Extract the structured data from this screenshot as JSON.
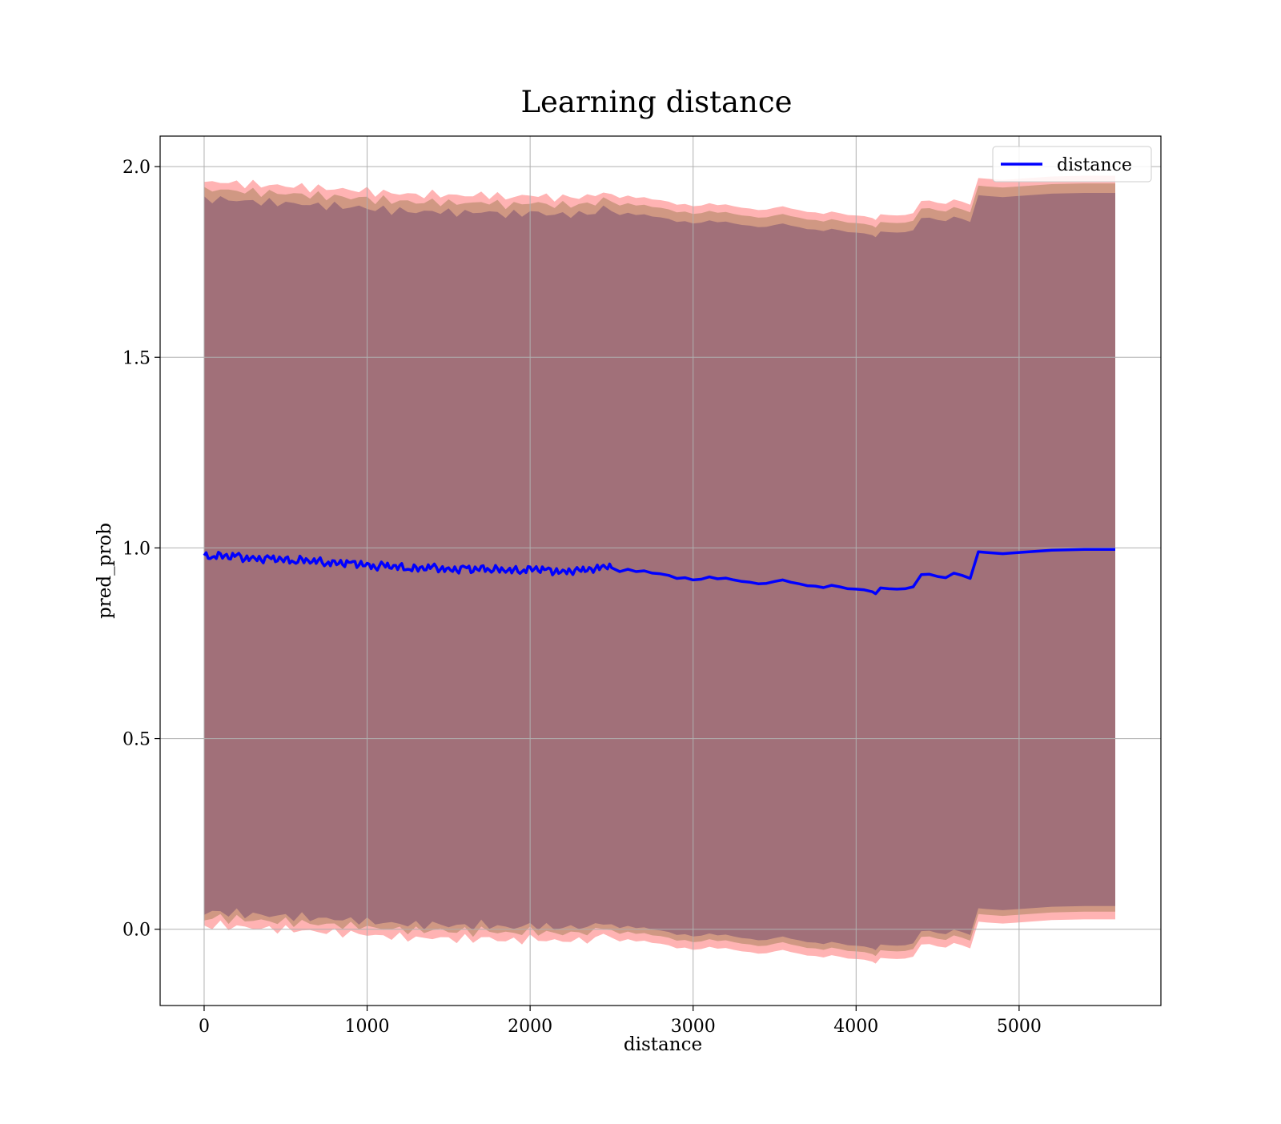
{
  "chart_data": {
    "type": "line",
    "title": "Learning distance",
    "xlabel": "distance",
    "ylabel": "pred_prob",
    "xlim": [
      -270,
      5870
    ],
    "ylim": [
      -0.2,
      2.08
    ],
    "xticks": [
      0,
      1000,
      2000,
      3000,
      4000,
      5000
    ],
    "xtick_labels": [
      "0",
      "1000",
      "2000",
      "3000",
      "4000",
      "5000"
    ],
    "yticks": [
      0.0,
      0.5,
      1.0,
      1.5,
      2.0
    ],
    "ytick_labels": [
      "0.0",
      "0.5",
      "1.0",
      "1.5",
      "2.0"
    ],
    "grid": true,
    "legend": {
      "placement": "top-right",
      "entries": [
        "distance"
      ]
    },
    "colors": {
      "line": "#0000ff",
      "band_outer": "#ff9a9a",
      "band_middle": "#c8937a",
      "band_inner": "#a17079",
      "grid": "#b0b0b0"
    },
    "series": [
      {
        "name": "distance",
        "x": [
          0,
          50,
          100,
          150,
          200,
          250,
          300,
          350,
          400,
          450,
          500,
          550,
          600,
          650,
          700,
          750,
          800,
          850,
          900,
          950,
          1000,
          1050,
          1100,
          1150,
          1200,
          1250,
          1300,
          1350,
          1400,
          1450,
          1500,
          1550,
          1600,
          1650,
          1700,
          1750,
          1800,
          1850,
          1900,
          1950,
          2000,
          2050,
          2100,
          2150,
          2200,
          2250,
          2300,
          2350,
          2400,
          2450,
          2500,
          2550,
          2600,
          2650,
          2700,
          2750,
          2800,
          2850,
          2900,
          2950,
          3000,
          3050,
          3100,
          3150,
          3200,
          3250,
          3300,
          3350,
          3400,
          3450,
          3500,
          3550,
          3600,
          3650,
          3700,
          3750,
          3800,
          3850,
          3900,
          3950,
          4000,
          4050,
          4100,
          4120,
          4150,
          4200,
          4250,
          4300,
          4350,
          4400,
          4450,
          4500,
          4550,
          4600,
          4650,
          4700,
          4750,
          4800,
          4900,
          5000,
          5200,
          5400,
          5590
        ],
        "y": [
          0.98,
          0.976,
          0.985,
          0.972,
          0.982,
          0.97,
          0.978,
          0.968,
          0.975,
          0.966,
          0.974,
          0.963,
          0.972,
          0.96,
          0.968,
          0.958,
          0.966,
          0.956,
          0.962,
          0.955,
          0.96,
          0.948,
          0.957,
          0.946,
          0.954,
          0.944,
          0.95,
          0.942,
          0.952,
          0.944,
          0.948,
          0.94,
          0.95,
          0.938,
          0.952,
          0.942,
          0.946,
          0.936,
          0.944,
          0.938,
          0.95,
          0.94,
          0.944,
          0.936,
          0.942,
          0.938,
          0.942,
          0.94,
          0.946,
          0.955,
          0.948,
          0.938,
          0.944,
          0.938,
          0.94,
          0.934,
          0.932,
          0.928,
          0.92,
          0.922,
          0.916,
          0.918,
          0.924,
          0.919,
          0.921,
          0.916,
          0.912,
          0.91,
          0.906,
          0.907,
          0.912,
          0.916,
          0.91,
          0.906,
          0.901,
          0.9,
          0.896,
          0.902,
          0.898,
          0.893,
          0.892,
          0.89,
          0.885,
          0.88,
          0.895,
          0.893,
          0.892,
          0.893,
          0.898,
          0.93,
          0.931,
          0.925,
          0.922,
          0.934,
          0.928,
          0.92,
          0.99,
          0.988,
          0.985,
          0.988,
          0.994,
          0.996,
          0.996
        ]
      }
    ],
    "bands": [
      {
        "role": "outer",
        "lower_offset": 0.97,
        "upper_offset": 0.98
      },
      {
        "role": "middle",
        "lower_offset": 0.95,
        "upper_offset": 0.96
      },
      {
        "role": "inner",
        "lower_offset": 0.935,
        "upper_offset": 0.935
      }
    ]
  }
}
